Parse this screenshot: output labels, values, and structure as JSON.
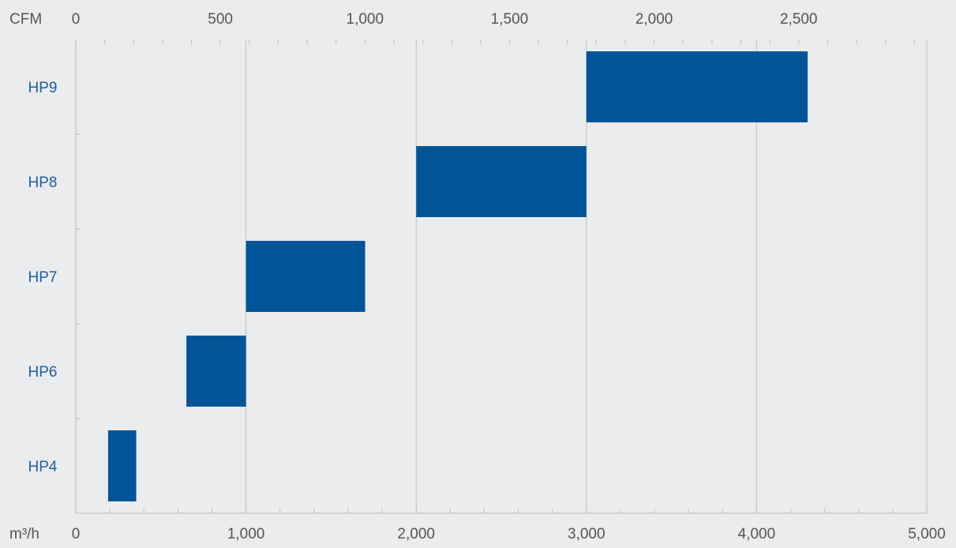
{
  "chart_data": {
    "type": "bar",
    "orientation": "horizontal-range",
    "x_unit_label": "m³/h",
    "x2_unit_label": "CFM",
    "xlim": [
      0,
      5000
    ],
    "x2lim": [
      0,
      2943
    ],
    "x_ticks": [
      {
        "value": 0,
        "label": "0"
      },
      {
        "value": 1000,
        "label": "1,000"
      },
      {
        "value": 2000,
        "label": "2,000"
      },
      {
        "value": 3000,
        "label": "3,000"
      },
      {
        "value": 4000,
        "label": "4,000"
      },
      {
        "value": 5000,
        "label": "5,000"
      }
    ],
    "x2_ticks": [
      {
        "value": 0,
        "label": "0"
      },
      {
        "value": 500,
        "label": "500"
      },
      {
        "value": 1000,
        "label": "1,000"
      },
      {
        "value": 1500,
        "label": "1,500"
      },
      {
        "value": 2000,
        "label": "2,000"
      },
      {
        "value": 2500,
        "label": "2,500"
      }
    ],
    "categories": [
      "HP9",
      "HP8",
      "HP7",
      "HP6",
      "HP4"
    ],
    "ranges": [
      {
        "label": "HP9",
        "start": 3000,
        "end": 4300
      },
      {
        "label": "HP8",
        "start": 2000,
        "end": 3000
      },
      {
        "label": "HP7",
        "start": 1000,
        "end": 1700
      },
      {
        "label": "HP6",
        "start": 650,
        "end": 1000
      },
      {
        "label": "HP4",
        "start": 190,
        "end": 355
      }
    ],
    "grid": true,
    "colors": {
      "bar": "#005599",
      "category_label": "#1f5ea8",
      "tick_label": "#555555",
      "grid": "#c9cacc",
      "axis": "#c3c4c6",
      "background": "#ebecee"
    }
  }
}
